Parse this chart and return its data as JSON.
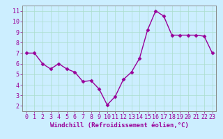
{
  "x": [
    0,
    1,
    2,
    3,
    4,
    5,
    6,
    7,
    8,
    9,
    10,
    11,
    12,
    13,
    14,
    15,
    16,
    17,
    18,
    19,
    20,
    21,
    22,
    23
  ],
  "y": [
    7,
    7,
    6,
    5.5,
    6,
    5.5,
    5.2,
    4.3,
    4.4,
    3.6,
    2.1,
    2.9,
    4.5,
    5.2,
    6.5,
    9.2,
    11.0,
    10.5,
    8.7,
    8.7,
    8.7,
    8.7,
    8.6,
    7.0
  ],
  "line_color": "#990099",
  "marker": "D",
  "marker_size": 2.5,
  "line_width": 1.0,
  "background_color": "#cceeff",
  "grid_color": "#aaddcc",
  "xlabel": "Windchill (Refroidissement éolien,°C)",
  "xlabel_fontsize": 6.5,
  "tick_fontsize": 6.0,
  "xlim": [
    -0.5,
    23.5
  ],
  "ylim": [
    1.5,
    11.5
  ],
  "yticks": [
    2,
    3,
    4,
    5,
    6,
    7,
    8,
    9,
    10,
    11
  ],
  "xticks": [
    0,
    1,
    2,
    3,
    4,
    5,
    6,
    7,
    8,
    9,
    10,
    11,
    12,
    13,
    14,
    15,
    16,
    17,
    18,
    19,
    20,
    21,
    22,
    23
  ],
  "spine_color": "#888888",
  "axis_bg": "#cceedd"
}
